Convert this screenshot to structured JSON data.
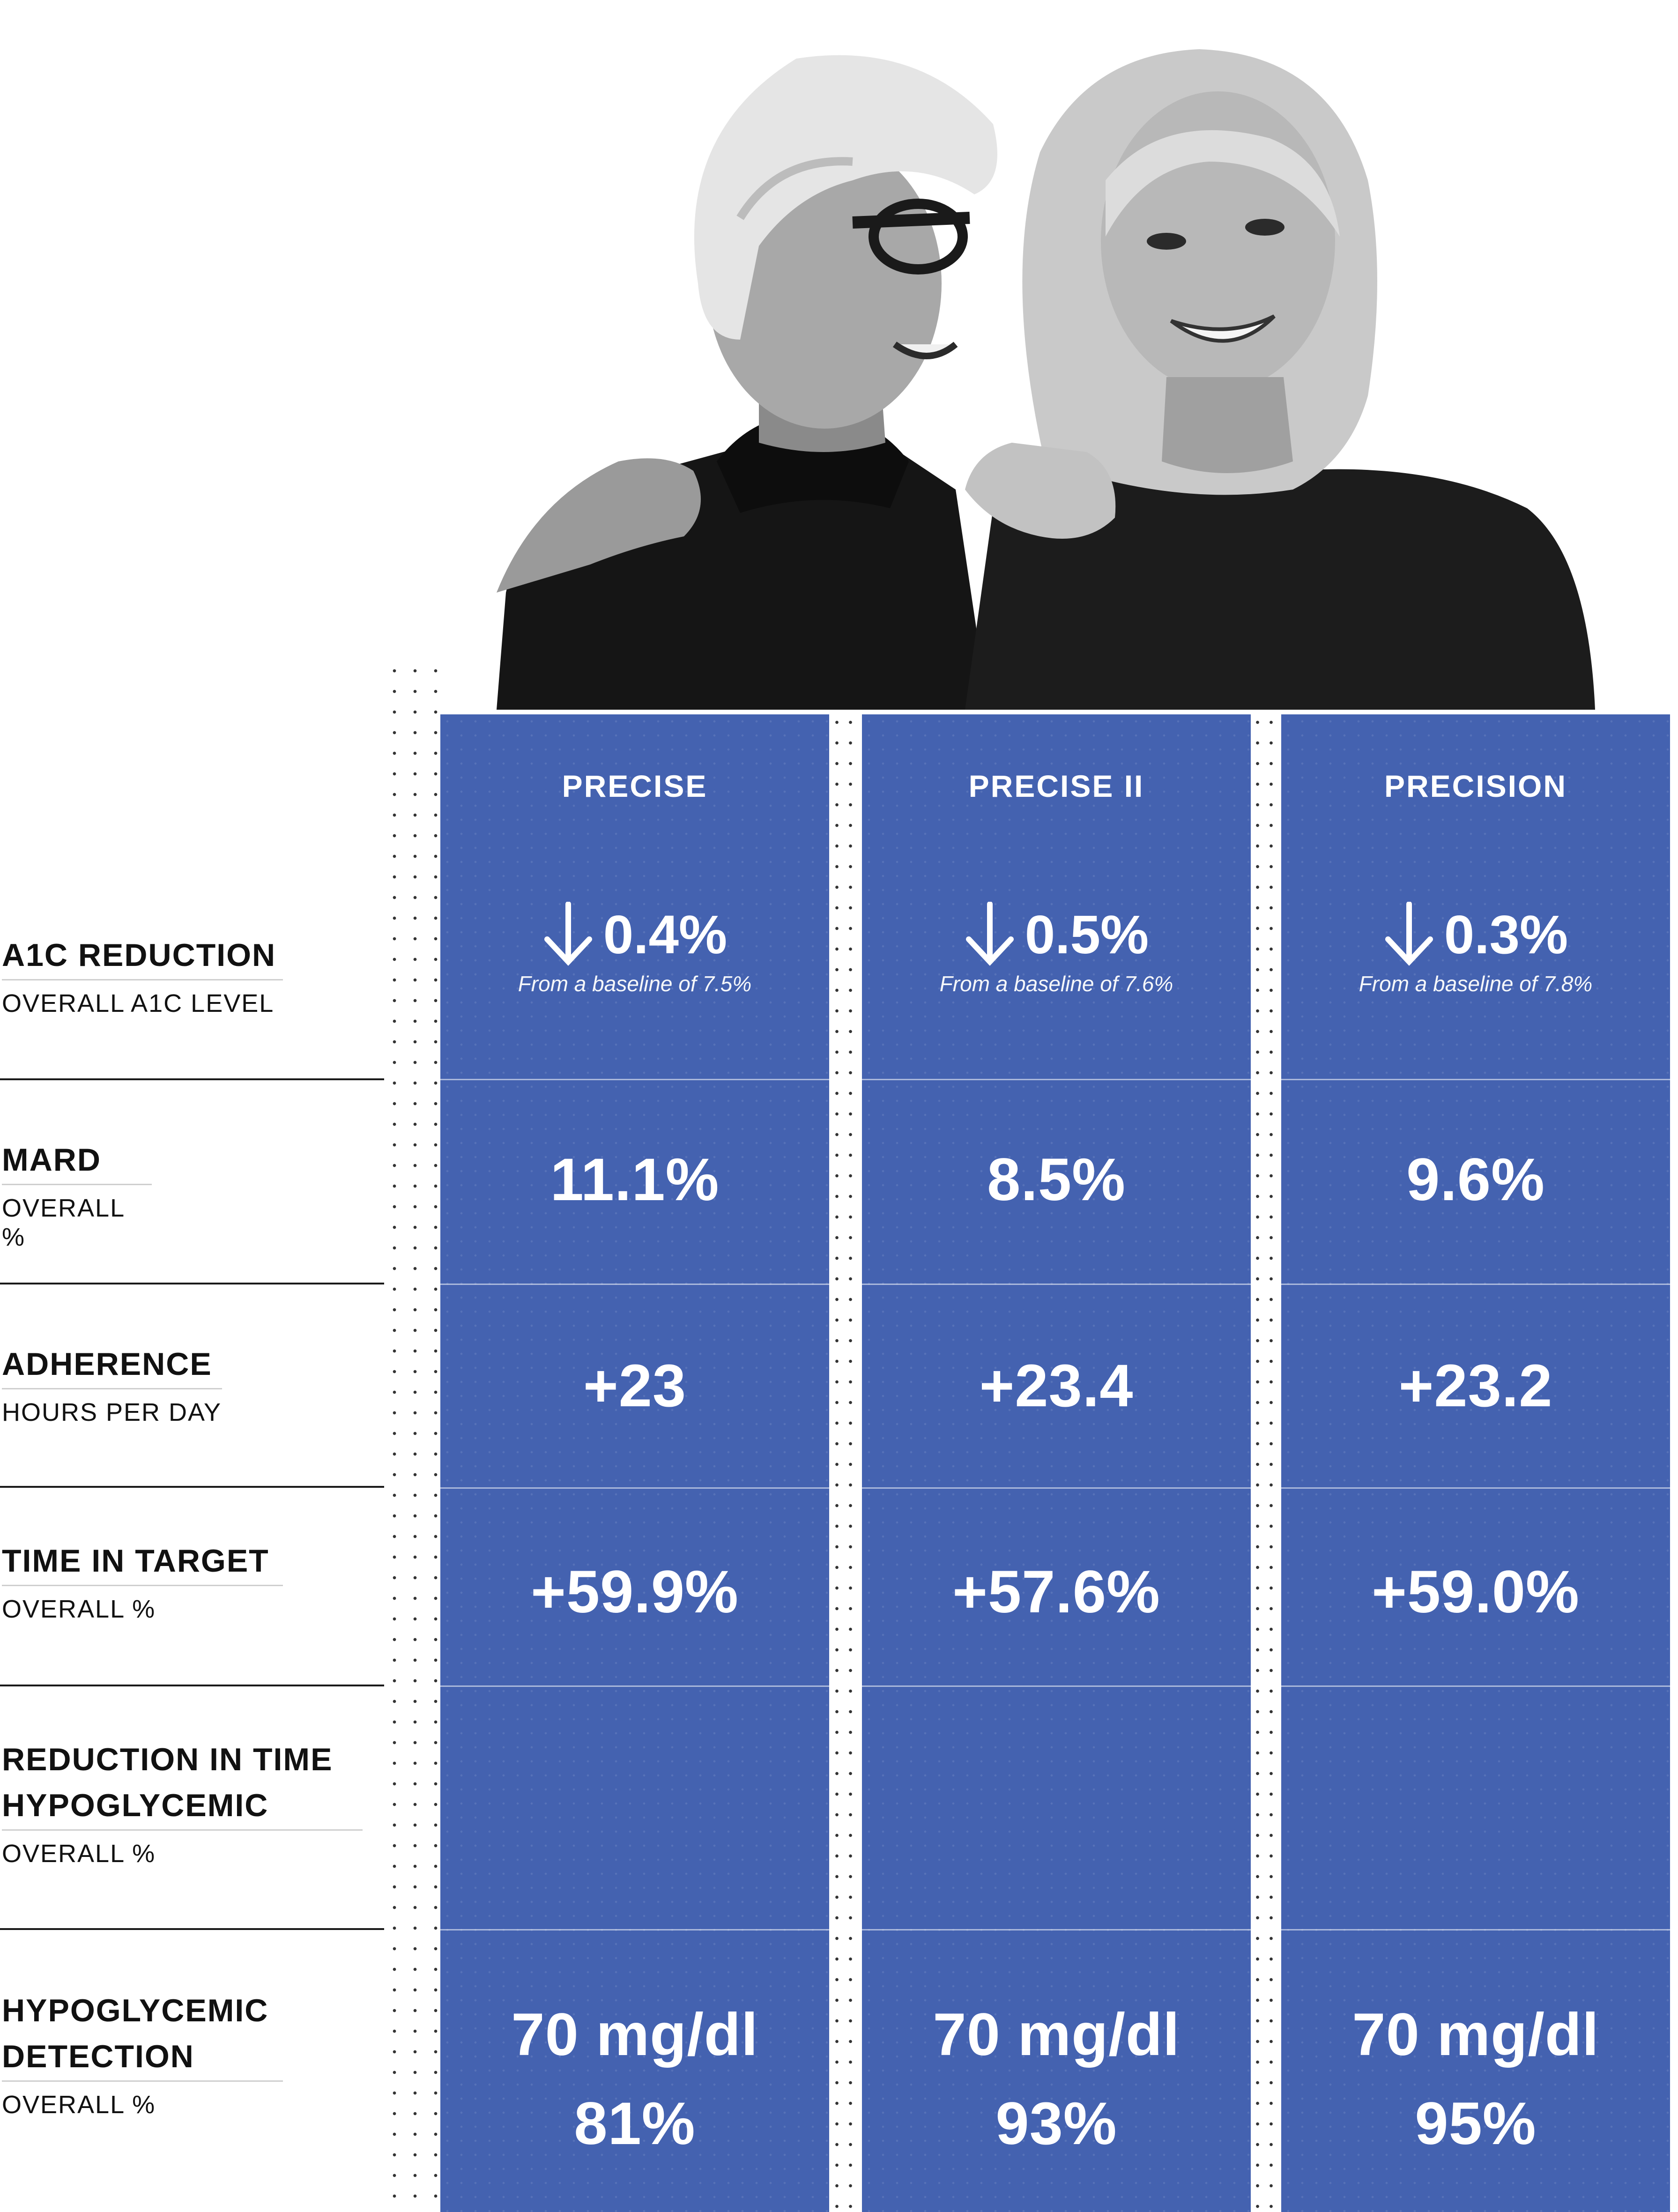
{
  "photo": {
    "icon": "two-women-smiling-photo"
  },
  "columns": [
    {
      "name": "PRECISE",
      "a1c": {
        "value": "0.4%",
        "baseline": "From a baseline of 7.5%"
      },
      "mard": "11.1%",
      "adherence": "+23",
      "time_in_target": "+59.9%",
      "reduction_hypo": "",
      "hypo_detection": {
        "threshold": "70 mg/dl",
        "value": "81%"
      }
    },
    {
      "name": "PRECISE II",
      "a1c": {
        "value": "0.5%",
        "baseline": "From a baseline of 7.6%"
      },
      "mard": "8.5%",
      "adherence": "+23.4",
      "time_in_target": "+57.6%",
      "reduction_hypo": "",
      "hypo_detection": {
        "threshold": "70 mg/dl",
        "value": "93%"
      }
    },
    {
      "name": "PRECISION",
      "a1c": {
        "value": "0.3%",
        "baseline": "From a baseline of 7.8%"
      },
      "mard": "9.6%",
      "adherence": "+23.2",
      "time_in_target": "+59.0%",
      "reduction_hypo": "",
      "hypo_detection": {
        "threshold": "70 mg/dl",
        "value": "95%"
      }
    }
  ],
  "rows": [
    {
      "title": [
        "A1C REDUCTION"
      ],
      "subtitle": "OVERALL A1C LEVEL"
    },
    {
      "title": [
        "MARD"
      ],
      "subtitle": "OVERALL %"
    },
    {
      "title": [
        "ADHERENCE"
      ],
      "subtitle": "HOURS PER DAY"
    },
    {
      "title": [
        "TIME IN TARGET"
      ],
      "subtitle": "OVERALL %"
    },
    {
      "title": [
        "REDUCTION IN TIME",
        "HYPOGLYCEMIC"
      ],
      "subtitle": "OVERALL %"
    },
    {
      "title": [
        "HYPOGLYCEMIC",
        "DETECTION"
      ],
      "subtitle": "OVERALL %"
    }
  ],
  "colors": {
    "column_blue": "#4462b0",
    "divider": "#1a1a1a",
    "text_dark": "#111111"
  }
}
